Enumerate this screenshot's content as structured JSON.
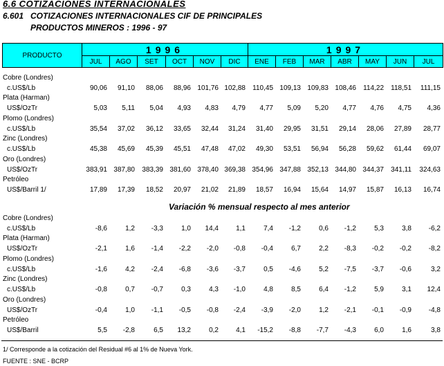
{
  "header": {
    "section": "6.6 COTIZACIONES INTERNACIONALES",
    "table_number": "6.601",
    "title_line1": "COTIZACIONES INTERNACIONALES CIF DE PRINCIPALES",
    "title_line2": "PRODUCTOS MINEROS : 1996 - 97"
  },
  "table": {
    "product_header": "PRODUCTO",
    "years": [
      {
        "label": "1996",
        "months": [
          "JUL",
          "AGO",
          "SET",
          "OCT",
          "NOV",
          "DIC"
        ]
      },
      {
        "label": "1997",
        "months": [
          "ENE",
          "FEB",
          "MAR",
          "ABR",
          "MAY",
          "JUN",
          "JUL"
        ]
      }
    ],
    "prices": [
      {
        "name": "Cobre (Londres)",
        "unit": "c.US$/Lb",
        "values": [
          "90,06",
          "91,10",
          "88,06",
          "88,96",
          "101,76",
          "102,88",
          "110,45",
          "109,13",
          "109,83",
          "108,46",
          "114,22",
          "118,51",
          "111,15"
        ]
      },
      {
        "name": "Plata (Harman)",
        "unit": "US$/OzTr",
        "values": [
          "5,03",
          "5,11",
          "5,04",
          "4,93",
          "4,83",
          "4,79",
          "4,77",
          "5,09",
          "5,20",
          "4,77",
          "4,76",
          "4,75",
          "4,36"
        ]
      },
      {
        "name": "Plomo (Londres)",
        "unit": "c.US$/Lb",
        "values": [
          "35,54",
          "37,02",
          "36,12",
          "33,65",
          "32,44",
          "31,24",
          "31,40",
          "29,95",
          "31,51",
          "29,14",
          "28,06",
          "27,89",
          "28,77"
        ]
      },
      {
        "name": "Zinc (Londres)",
        "unit": "c.US$/Lb",
        "values": [
          "45,38",
          "45,69",
          "45,39",
          "45,51",
          "47,48",
          "47,02",
          "49,30",
          "53,51",
          "56,94",
          "56,28",
          "59,62",
          "61,44",
          "69,07"
        ]
      },
      {
        "name": "Oro (Londres)",
        "unit": "US$/OzTr",
        "values": [
          "383,91",
          "387,80",
          "383,39",
          "381,60",
          "378,40",
          "369,38",
          "354,96",
          "347,88",
          "352,13",
          "344,80",
          "344,37",
          "341,11",
          "324,63"
        ]
      },
      {
        "name": "Petróleo",
        "unit": "US$/Barril  1/",
        "values": [
          "17,89",
          "17,39",
          "18,52",
          "20,97",
          "21,02",
          "21,89",
          "18,57",
          "16,94",
          "15,64",
          "14,97",
          "15,87",
          "16,13",
          "16,74"
        ]
      }
    ],
    "variation_title": "Variación % mensual respecto al mes anterior",
    "variations": [
      {
        "name": "Cobre (Londres)",
        "unit": "c.US$/Lb",
        "values": [
          "-8,6",
          "1,2",
          "-3,3",
          "1,0",
          "14,4",
          "1,1",
          "7,4",
          "-1,2",
          "0,6",
          "-1,2",
          "5,3",
          "3,8",
          "-6,2"
        ]
      },
      {
        "name": "Plata (Harman)",
        "unit": "US$/OzTr",
        "values": [
          "-2,1",
          "1,6",
          "-1,4",
          "-2,2",
          "-2,0",
          "-0,8",
          "-0,4",
          "6,7",
          "2,2",
          "-8,3",
          "-0,2",
          "-0,2",
          "-8,2"
        ]
      },
      {
        "name": "Plomo (Londres)",
        "unit": "c.US$/Lb",
        "values": [
          "-1,6",
          "4,2",
          "-2,4",
          "-6,8",
          "-3,6",
          "-3,7",
          "0,5",
          "-4,6",
          "5,2",
          "-7,5",
          "-3,7",
          "-0,6",
          "3,2"
        ]
      },
      {
        "name": "Zinc (Londres)",
        "unit": "c.US$/Lb",
        "values": [
          "-0,8",
          "0,7",
          "-0,7",
          "0,3",
          "4,3",
          "-1,0",
          "4,8",
          "8,5",
          "6,4",
          "-1,2",
          "5,9",
          "3,1",
          "12,4"
        ]
      },
      {
        "name": "Oro (Londres)",
        "unit": "US$/OzTr",
        "values": [
          "-0,4",
          "1,0",
          "-1,1",
          "-0,5",
          "-0,8",
          "-2,4",
          "-3,9",
          "-2,0",
          "1,2",
          "-2,1",
          "-0,1",
          "-0,9",
          "-4,8"
        ]
      },
      {
        "name": "Petróleo",
        "unit": "US$/Barril",
        "values": [
          "5,5",
          "-2,8",
          "6,5",
          "13,2",
          "0,2",
          "4,1",
          "-15,2",
          "-8,8",
          "-7,7",
          "-4,3",
          "6,0",
          "1,6",
          "3,8"
        ]
      }
    ]
  },
  "footnote": "1/ Corresponde a la cotización del Residual #6 al 1% de Nueva York.",
  "source": "FUENTE : SNE - BCRP"
}
